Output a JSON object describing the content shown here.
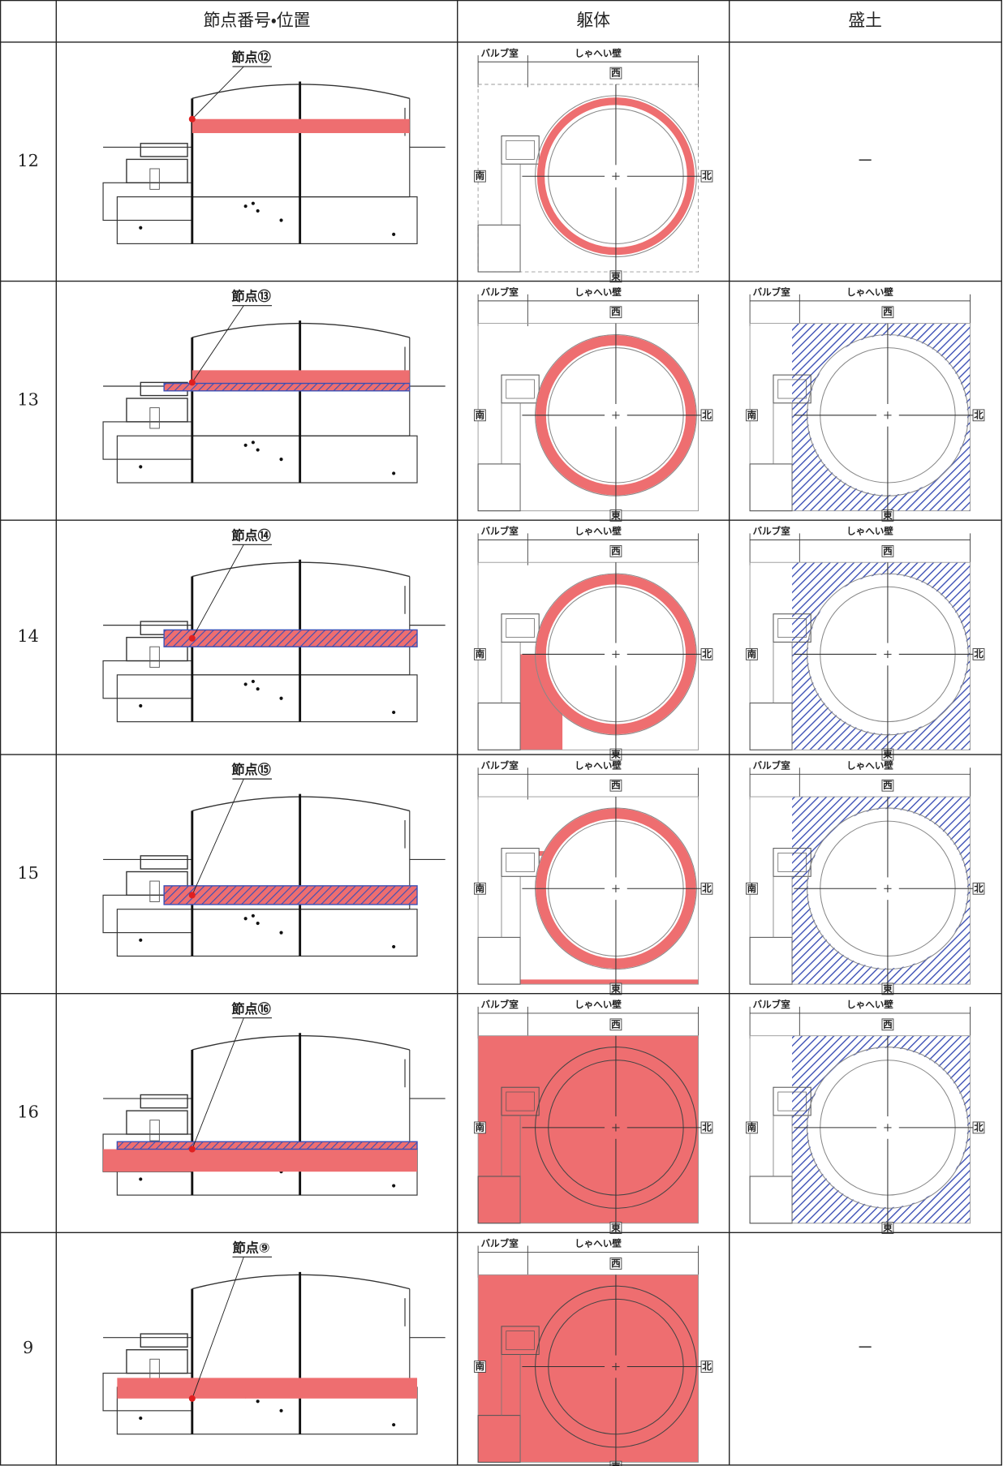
{
  "header": {
    "node": "節点番号・位置",
    "body": "躯体",
    "fill": "盛土"
  },
  "plan_labels": {
    "valve": "バルブ室",
    "wall": "しゃへい壁",
    "west": "西",
    "south": "南",
    "north": "北",
    "east": "東"
  },
  "rows": [
    {
      "number": "12",
      "node_label": "節点⑫",
      "fill_text": "－"
    },
    {
      "number": "13",
      "node_label": "節点⑬"
    },
    {
      "number": "14",
      "node_label": "節点⑭"
    },
    {
      "number": "15",
      "node_label": "節点⑮"
    },
    {
      "number": "16",
      "node_label": "節点⑯"
    },
    {
      "number": "9",
      "node_label": "節点⑨",
      "fill_text": "－"
    }
  ]
}
